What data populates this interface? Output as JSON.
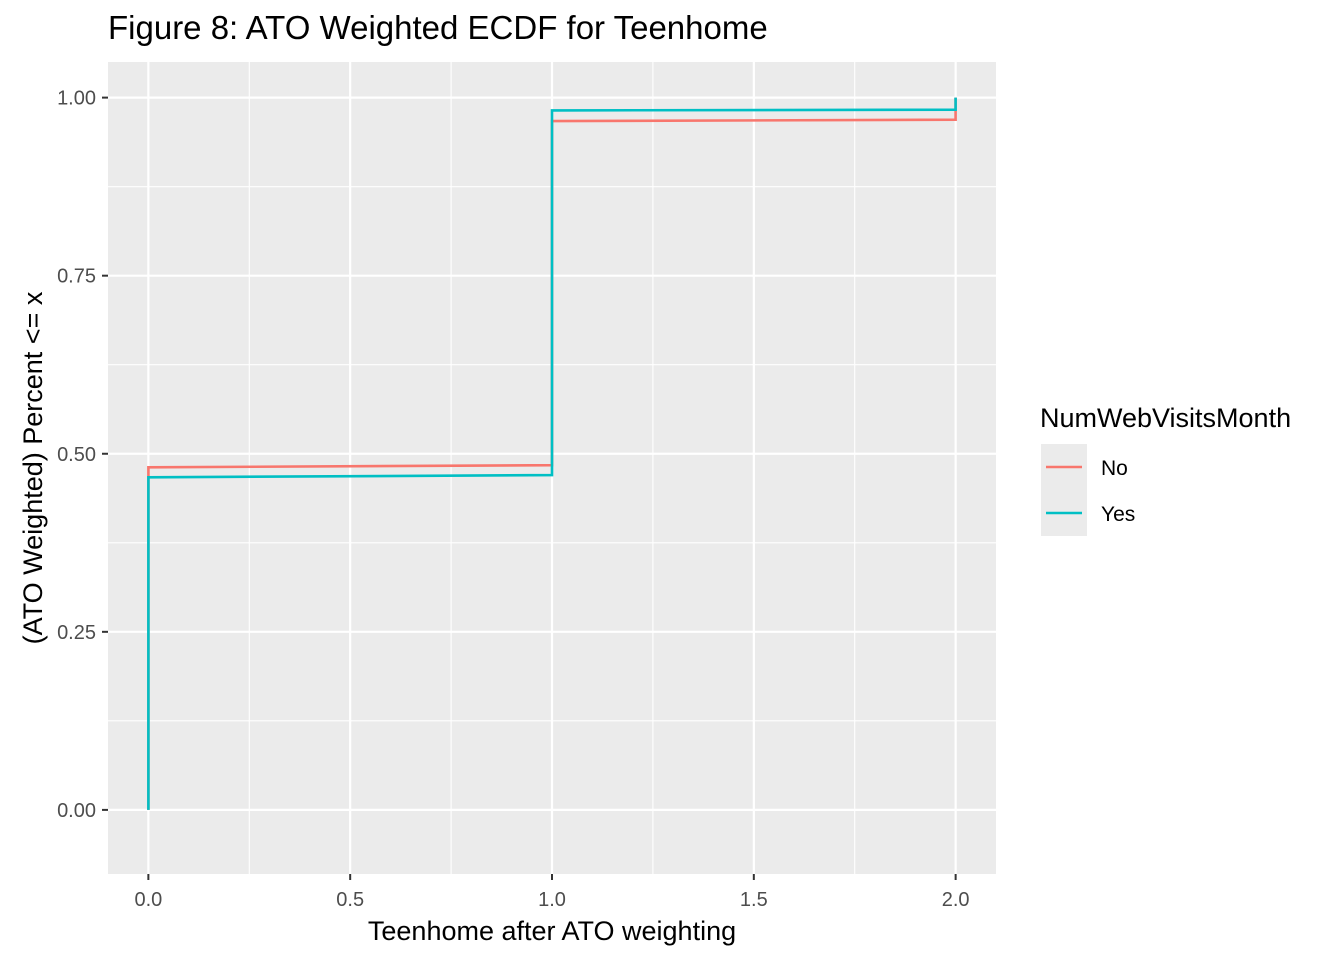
{
  "chart_data": {
    "type": "line",
    "step": true,
    "title": "Figure 8: ATO Weighted ECDF for Teenhome",
    "xlabel": "Teenhome after ATO weighting",
    "ylabel": "(ATO Weighted) Percent <= x",
    "xlim": [
      -0.1,
      2.1
    ],
    "ylim": [
      -0.09,
      1.05
    ],
    "x_ticks": [
      0.0,
      0.5,
      1.0,
      1.5,
      2.0
    ],
    "x_tick_labels": [
      "0.0",
      "0.5",
      "1.0",
      "1.5",
      "2.0"
    ],
    "y_ticks": [
      0.0,
      0.25,
      0.5,
      0.75,
      1.0
    ],
    "y_tick_labels": [
      "0.00",
      "0.25",
      "0.50",
      "0.75",
      "1.00"
    ],
    "grid": true,
    "legend": {
      "title": "NumWebVisitsMonth",
      "position": "right"
    },
    "series": [
      {
        "name": "No",
        "color": "#F8766D",
        "points": [
          [
            0.0,
            0.0
          ],
          [
            0.0,
            0.481
          ],
          [
            1.0,
            0.484
          ],
          [
            1.0,
            0.967
          ],
          [
            2.0,
            0.969
          ],
          [
            2.0,
            1.0
          ]
        ]
      },
      {
        "name": "Yes",
        "color": "#00BFC4",
        "points": [
          [
            0.0,
            0.0
          ],
          [
            0.0,
            0.467
          ],
          [
            1.0,
            0.47
          ],
          [
            1.0,
            0.982
          ],
          [
            2.0,
            0.983
          ],
          [
            2.0,
            1.0
          ]
        ]
      }
    ]
  }
}
